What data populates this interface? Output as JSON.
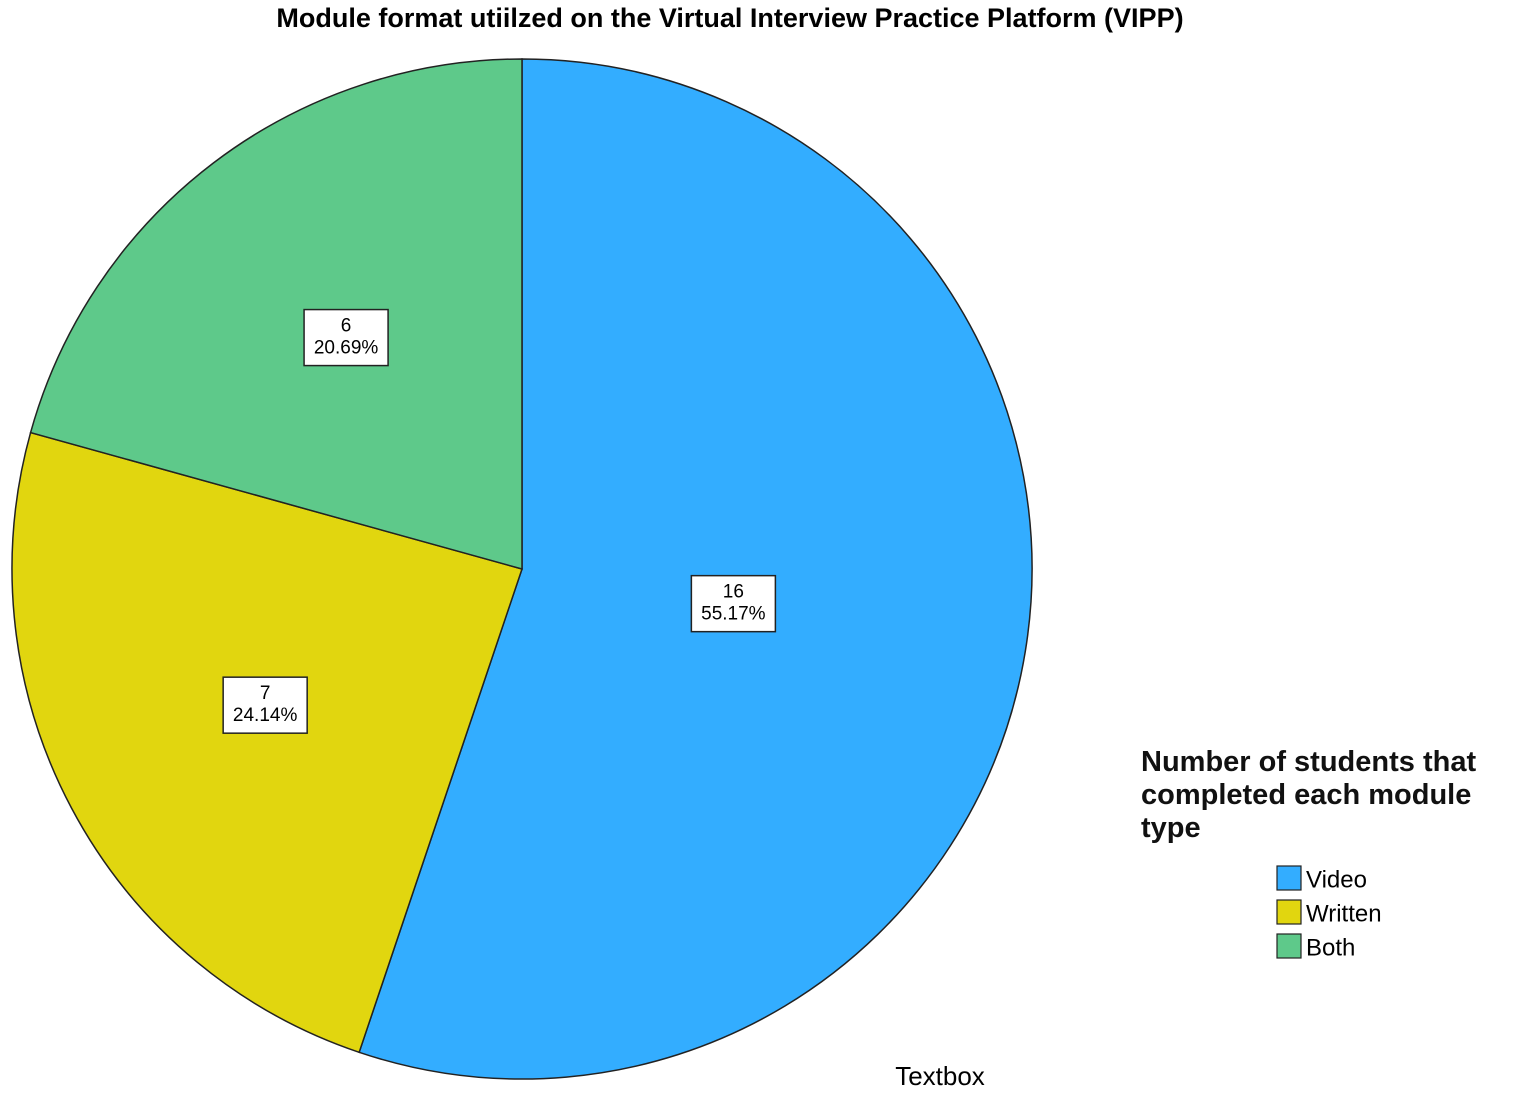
{
  "chart_data": {
    "type": "pie",
    "title": "Module format utiilzed on the Virtual Interview Practice Platform (VIPP)",
    "categories": [
      "Video",
      "Written",
      "Both"
    ],
    "values": [
      16,
      7,
      6
    ],
    "percent_labels": [
      "55.17%",
      "24.14%",
      "20.69%"
    ],
    "colors": [
      "#33adff",
      "#e1d60f",
      "#5ec98a"
    ],
    "legend_title": "Number of students that completed each module type",
    "legend": "bottom-right",
    "annotation": "Textbox"
  }
}
